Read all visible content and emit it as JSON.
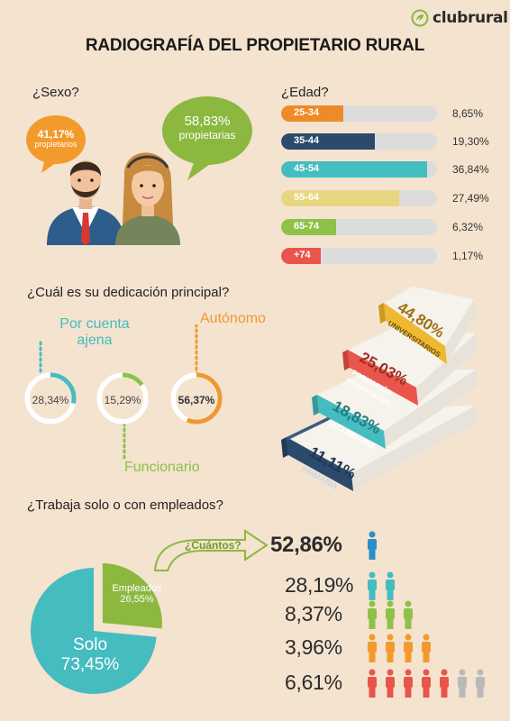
{
  "brand": {
    "name": "clubrural"
  },
  "title": "RADIOGRAFÍA DEL PROPIETARIO RURAL",
  "sexo": {
    "heading": "¿Sexo?",
    "men": {
      "pct": "41,17%",
      "label": "propietarios",
      "color": "#f39a2c"
    },
    "women": {
      "pct": "58,83%",
      "label": "propietarias",
      "color": "#8cb83f"
    }
  },
  "edad": {
    "heading": "¿Edad?",
    "rows": [
      {
        "label": "25-34",
        "pct": "8,65%",
        "value": 8.65,
        "color": "#ee8a27"
      },
      {
        "label": "35-44",
        "pct": "19,30%",
        "value": 19.3,
        "color": "#2c4a6b"
      },
      {
        "label": "45-54",
        "pct": "36,84%",
        "value": 36.84,
        "color": "#45bcc0"
      },
      {
        "label": "55-64",
        "pct": "27,49%",
        "value": 27.49,
        "color": "#e7d680"
      },
      {
        "label": "65-74",
        "pct": "6,32%",
        "value": 6.32,
        "color": "#8dc148"
      },
      {
        "label": "+74",
        "pct": "1,17%",
        "value": 1.17,
        "color": "#e9554a"
      }
    ]
  },
  "dedicacion": {
    "heading": "¿Cuál es su dedicación principal?",
    "items": [
      {
        "name_line1": "Por cuenta",
        "name_line2": "ajena",
        "pct": "28,34%",
        "value": 28.34,
        "color": "#45bcc0"
      },
      {
        "name_line1": "Funcionario",
        "name_line2": "",
        "pct": "15,29%",
        "value": 15.29,
        "color": "#8dc148"
      },
      {
        "name_line1": "Autónomo",
        "name_line2": "",
        "pct": "56,37%",
        "value": 56.37,
        "color": "#ee9a30"
      }
    ]
  },
  "estudios": {
    "books": [
      {
        "pct": "11,11%",
        "label": "PRIMARIA",
        "value": 11.11,
        "color": "#2c4a6b"
      },
      {
        "pct": "18,83%",
        "label": "SECUNDARIA",
        "value": 18.83,
        "color": "#45bcc0"
      },
      {
        "pct": "25,03%",
        "label1": "FORMACIÓN",
        "label2": "PROFESIONAL",
        "value": 25.03,
        "color": "#e9554a"
      },
      {
        "pct": "44,80%",
        "label": "UNIVERSITARIOS",
        "value": 44.8,
        "color": "#f0b731"
      }
    ]
  },
  "trabaja": {
    "heading": "¿Trabaja solo o con empleados?",
    "solo": {
      "label": "Solo",
      "pct": "73,45%",
      "value": 73.45,
      "color": "#45bcc0"
    },
    "empleados": {
      "label": "Empleados",
      "pct": "26,55%",
      "value": 26.55,
      "color": "#8cb83f"
    },
    "cuantos": "¿Cuántos?",
    "counts": [
      {
        "pct": "52,86%",
        "value": 52.86,
        "people": 1,
        "grey": 0,
        "color": "#2a8fc4"
      },
      {
        "pct": "28,19%",
        "value": 28.19,
        "people": 2,
        "grey": 0,
        "color": "#45bcc0"
      },
      {
        "pct": "8,37%",
        "value": 8.37,
        "people": 3,
        "grey": 0,
        "color": "#8dc148"
      },
      {
        "pct": "3,96%",
        "value": 3.96,
        "people": 4,
        "grey": 0,
        "color": "#f39a2c"
      },
      {
        "pct": "6,61%",
        "value": 6.61,
        "people": 5,
        "grey": 2,
        "color": "#e9554a"
      }
    ]
  },
  "chart_data": [
    {
      "type": "pie",
      "categories": [
        "propietarios",
        "propietarias"
      ],
      "values": [
        41.17,
        58.83
      ],
      "title": "¿Sexo?"
    },
    {
      "type": "bar",
      "categories": [
        "25-34",
        "35-44",
        "45-54",
        "55-64",
        "65-74",
        "+74"
      ],
      "values": [
        8.65,
        19.3,
        36.84,
        27.49,
        6.32,
        1.17
      ],
      "title": "¿Edad?"
    },
    {
      "type": "pie",
      "categories": [
        "Por cuenta ajena",
        "Funcionario",
        "Autónomo"
      ],
      "values": [
        28.34,
        15.29,
        56.37
      ],
      "title": "¿Cuál es su dedicación principal?"
    },
    {
      "type": "bar",
      "categories": [
        "PRIMARIA",
        "SECUNDARIA",
        "FORMACIÓN PROFESIONAL",
        "UNIVERSITARIOS"
      ],
      "values": [
        11.11,
        18.83,
        25.03,
        44.8
      ]
    },
    {
      "type": "pie",
      "categories": [
        "Solo",
        "Empleados"
      ],
      "values": [
        73.45,
        26.55
      ],
      "title": "¿Trabaja solo o con empleados?"
    },
    {
      "type": "bar",
      "categories": [
        "1",
        "2",
        "3",
        "4",
        "5+"
      ],
      "values": [
        52.86,
        28.19,
        8.37,
        3.96,
        6.61
      ],
      "title": "¿Cuántos?"
    }
  ]
}
